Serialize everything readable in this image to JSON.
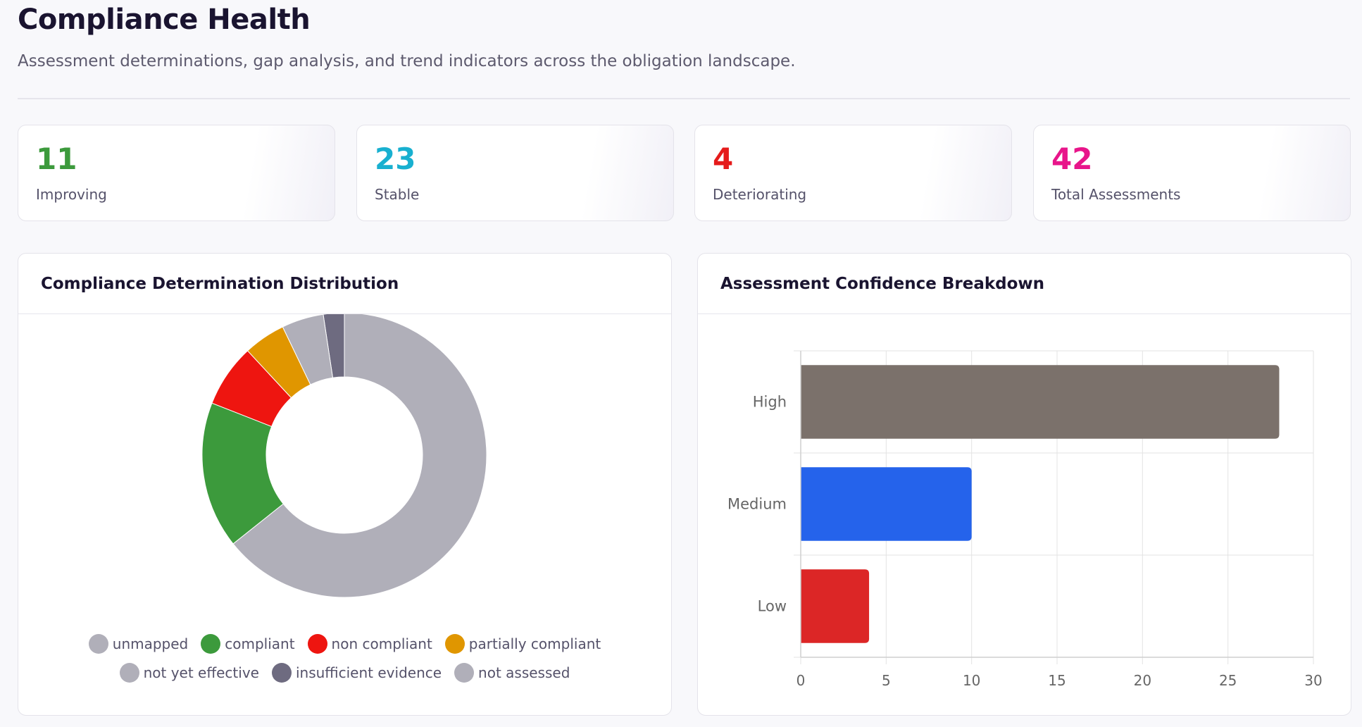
{
  "header": {
    "title": "Compliance Health",
    "subtitle": "Assessment determinations, gap analysis, and trend indicators across the obligation landscape."
  },
  "stats": [
    {
      "value": "11",
      "label": "Improving",
      "color": "#3c9a3c"
    },
    {
      "value": "23",
      "label": "Stable",
      "color": "#18b0d0"
    },
    {
      "value": "4",
      "label": "Deteriorating",
      "color": "#e51b1b"
    },
    {
      "value": "42",
      "label": "Total Assessments",
      "color": "#e8158a"
    }
  ],
  "panels": {
    "distribution": {
      "title": "Compliance Determination Distribution"
    },
    "confidence": {
      "title": "Assessment Confidence Breakdown"
    }
  },
  "chart_data": [
    {
      "type": "pie",
      "donut": true,
      "title": "Compliance Determination Distribution",
      "slices": [
        {
          "label": "insufficient evidence",
          "value": 1,
          "color": "#6e6b80"
        },
        {
          "label": "unmapped",
          "value": 27,
          "color": "#b0afb9"
        },
        {
          "label": "compliant",
          "value": 7,
          "color": "#3c9a3c"
        },
        {
          "label": "non compliant",
          "value": 3,
          "color": "#ee1510"
        },
        {
          "label": "partially compliant",
          "value": 2,
          "color": "#e09600"
        },
        {
          "label": "not yet effective",
          "value": 2,
          "color": "#b0afb9"
        },
        {
          "label": "not assessed",
          "value": 0,
          "color": "#b0afb9"
        }
      ],
      "legend": {
        "placement": "bottom",
        "rows": [
          [
            {
              "label": "unmapped",
              "color": "#b0afb9"
            },
            {
              "label": "compliant",
              "color": "#3c9a3c"
            },
            {
              "label": "non compliant",
              "color": "#ee1510"
            },
            {
              "label": "partially compliant",
              "color": "#e09600"
            }
          ],
          [
            {
              "label": "not yet effective",
              "color": "#b0afb9"
            },
            {
              "label": "insufficient evidence",
              "color": "#6e6b80"
            },
            {
              "label": "not assessed",
              "color": "#b0afb9"
            }
          ]
        ]
      }
    },
    {
      "type": "bar",
      "orientation": "horizontal",
      "title": "Assessment Confidence Breakdown",
      "categories": [
        "High",
        "Medium",
        "Low"
      ],
      "values": [
        28,
        10,
        4
      ],
      "colors": [
        "#7b716b",
        "#2563eb",
        "#dc2626"
      ],
      "xlim": [
        0,
        30
      ],
      "xticks": [
        "0",
        "5",
        "10",
        "15",
        "20",
        "25",
        "30"
      ],
      "grid": true
    }
  ]
}
